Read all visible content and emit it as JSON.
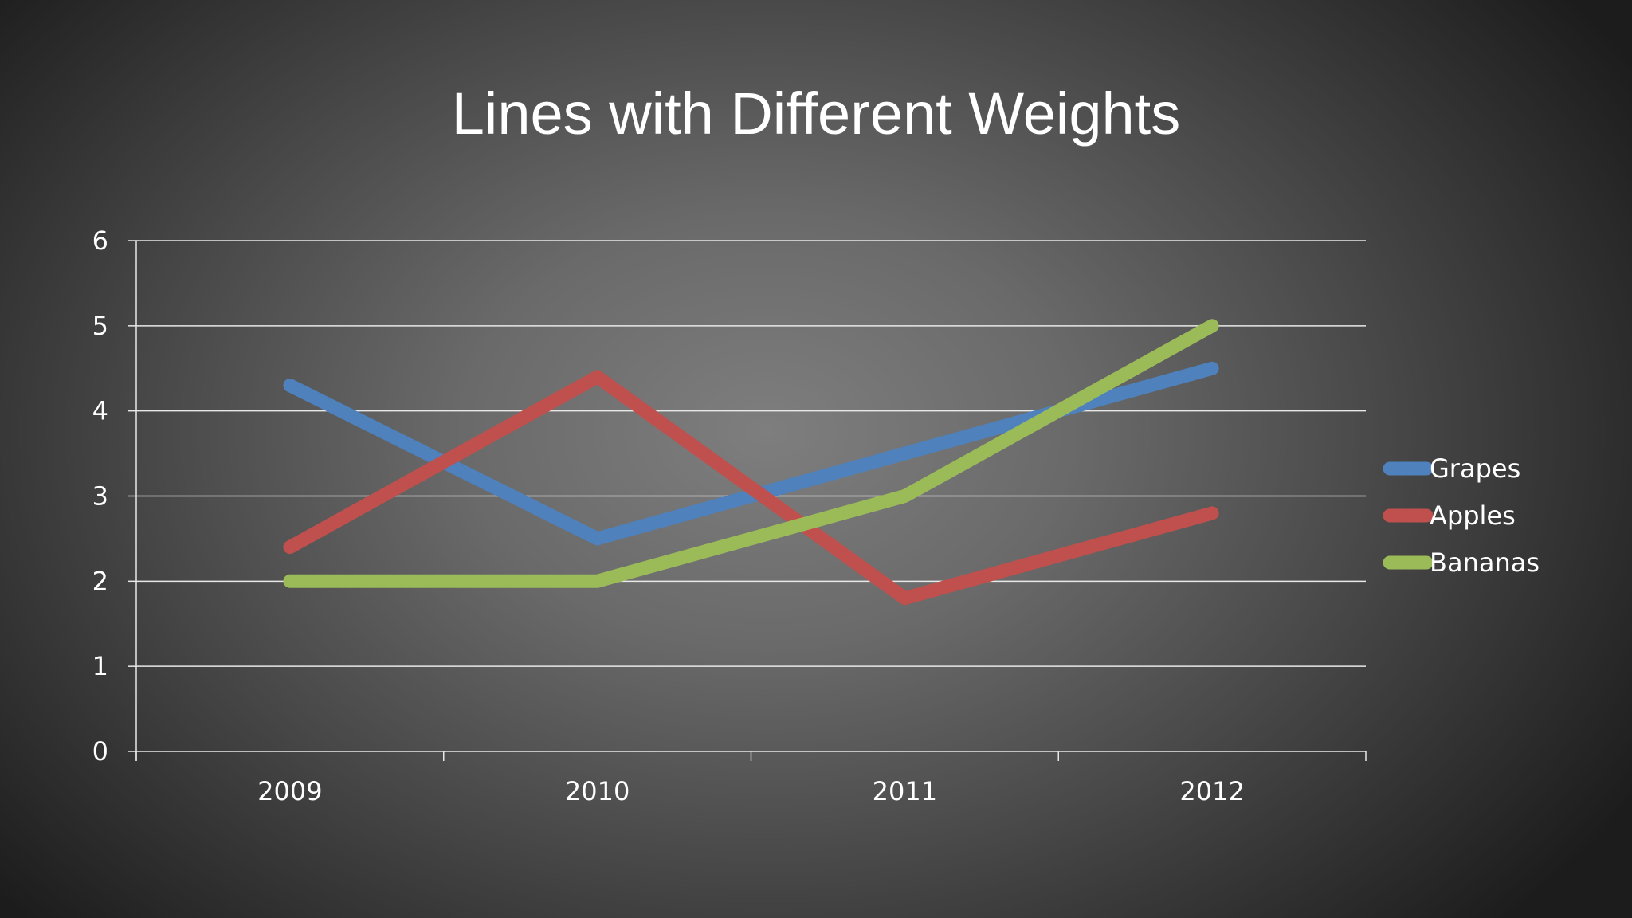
{
  "chart_data": {
    "type": "line",
    "title": "Lines with Different Weights",
    "xlabel": "",
    "ylabel": "",
    "categories": [
      "2009",
      "2010",
      "2011",
      "2012"
    ],
    "ylim": [
      0,
      6
    ],
    "yticks": [
      0,
      1,
      2,
      3,
      4,
      5,
      6
    ],
    "grid": true,
    "legend_position": "right",
    "series": [
      {
        "name": "Grapes",
        "values": [
          4.3,
          2.5,
          3.5,
          4.5
        ],
        "color": "#4f81bd"
      },
      {
        "name": "Apples",
        "values": [
          2.4,
          4.4,
          1.8,
          2.8
        ],
        "color": "#c0504d"
      },
      {
        "name": "Bananas",
        "values": [
          2,
          2,
          3,
          5
        ],
        "color": "#9bbb59"
      }
    ]
  }
}
